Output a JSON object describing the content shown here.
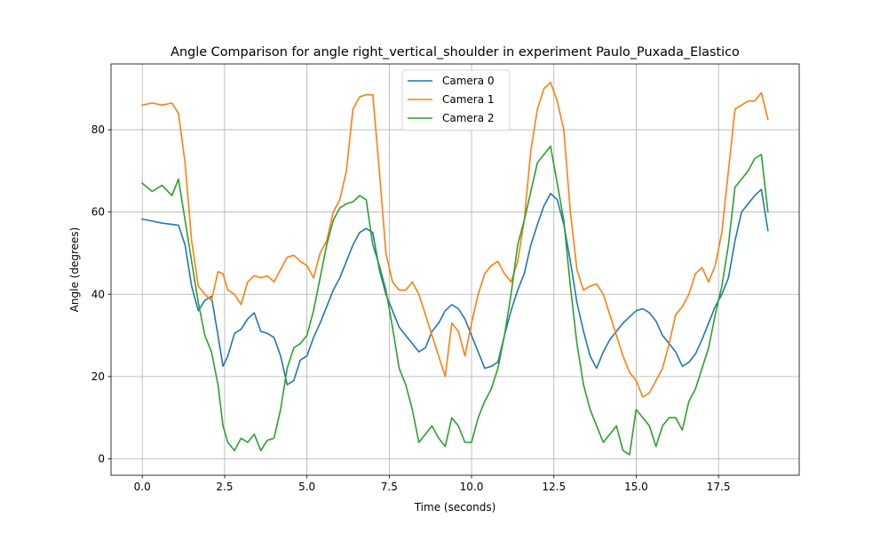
{
  "chart_data": {
    "type": "line",
    "title": "Angle Comparison for angle right_vertical_shoulder in experiment Paulo_Puxada_Elastico",
    "xlabel": "Time (seconds)",
    "ylabel": "Angle (degrees)",
    "xlim": [
      -0.95,
      19.95
    ],
    "ylim": [
      -4,
      96
    ],
    "xticks": [
      0,
      2.5,
      5,
      7.5,
      10,
      12.5,
      15,
      17.5
    ],
    "xtick_labels": [
      "0.0",
      "2.5",
      "5.0",
      "7.5",
      "10.0",
      "12.5",
      "15.0",
      "17.5"
    ],
    "yticks": [
      0,
      20,
      40,
      60,
      80
    ],
    "ytick_labels": [
      "0",
      "20",
      "40",
      "60",
      "80"
    ],
    "grid": true,
    "legend_position": "upper center",
    "series": [
      {
        "name": "Camera 0",
        "color": "#1f77b4",
        "x": [
          0,
          0.3,
          0.6,
          0.9,
          1.1,
          1.3,
          1.5,
          1.7,
          1.9,
          2.1,
          2.3,
          2.45,
          2.6,
          2.8,
          3.0,
          3.2,
          3.4,
          3.6,
          3.8,
          4.0,
          4.2,
          4.4,
          4.6,
          4.8,
          5.0,
          5.2,
          5.4,
          5.6,
          5.8,
          6.0,
          6.2,
          6.4,
          6.6,
          6.8,
          7.0,
          7.2,
          7.4,
          7.6,
          7.8,
          8.0,
          8.2,
          8.4,
          8.6,
          8.8,
          9.0,
          9.2,
          9.4,
          9.6,
          9.8,
          10.0,
          10.2,
          10.4,
          10.6,
          10.8,
          11.0,
          11.2,
          11.4,
          11.6,
          11.8,
          12.0,
          12.2,
          12.4,
          12.6,
          12.8,
          13.0,
          13.2,
          13.4,
          13.6,
          13.8,
          14.0,
          14.2,
          14.4,
          14.6,
          14.8,
          15.0,
          15.2,
          15.4,
          15.6,
          15.8,
          16.0,
          16.2,
          16.4,
          16.6,
          16.8,
          17.0,
          17.2,
          17.4,
          17.6,
          17.8,
          18.0,
          18.2,
          18.4,
          18.6,
          18.8,
          19.0
        ],
        "values": [
          58.3,
          57.8,
          57.3,
          57.0,
          56.8,
          52.0,
          42.0,
          36.0,
          38.5,
          39.5,
          30.0,
          22.5,
          25.0,
          30.5,
          31.5,
          34.0,
          35.5,
          31.0,
          30.5,
          29.5,
          25.0,
          18.0,
          19.0,
          24.0,
          25.0,
          29.5,
          33.0,
          37.0,
          41.0,
          44.0,
          48.0,
          52.0,
          55.0,
          56.0,
          55.0,
          46.0,
          40.0,
          36.0,
          32.0,
          30.0,
          28.0,
          26.0,
          27.0,
          31.0,
          33.0,
          36.0,
          37.5,
          36.5,
          34.0,
          30.0,
          26.0,
          22.0,
          22.5,
          23.5,
          30.0,
          36.0,
          41.0,
          45.0,
          52.0,
          57.0,
          61.5,
          64.5,
          63.0,
          57.0,
          48.0,
          38.0,
          31.0,
          25.0,
          22.0,
          26.0,
          29.0,
          31.0,
          33.0,
          34.5,
          36.0,
          36.5,
          35.5,
          33.5,
          30.0,
          28.0,
          26.0,
          22.5,
          23.5,
          25.5,
          29.0,
          33.0,
          37.0,
          40.0,
          44.0,
          53.0,
          60.0,
          62.0,
          64.0,
          65.5,
          55.5
        ]
      },
      {
        "name": "Camera 1",
        "color": "#ff7f0e",
        "x": [
          0,
          0.3,
          0.6,
          0.9,
          1.1,
          1.3,
          1.5,
          1.7,
          1.9,
          2.1,
          2.3,
          2.45,
          2.6,
          2.8,
          3.0,
          3.2,
          3.4,
          3.6,
          3.8,
          4.0,
          4.2,
          4.4,
          4.6,
          4.8,
          5.0,
          5.2,
          5.4,
          5.6,
          5.8,
          6.0,
          6.2,
          6.4,
          6.6,
          6.8,
          7.0,
          7.2,
          7.4,
          7.6,
          7.8,
          8.0,
          8.2,
          8.4,
          8.6,
          8.8,
          9.0,
          9.2,
          9.4,
          9.6,
          9.8,
          10.0,
          10.2,
          10.4,
          10.6,
          10.8,
          11.0,
          11.2,
          11.4,
          11.6,
          11.8,
          12.0,
          12.2,
          12.4,
          12.6,
          12.8,
          13.0,
          13.2,
          13.4,
          13.6,
          13.8,
          14.0,
          14.2,
          14.4,
          14.6,
          14.8,
          15.0,
          15.2,
          15.4,
          15.6,
          15.8,
          16.0,
          16.2,
          16.4,
          16.6,
          16.8,
          17.0,
          17.2,
          17.4,
          17.6,
          17.8,
          18.0,
          18.2,
          18.4,
          18.6,
          18.8,
          19.0
        ],
        "values": [
          86.0,
          86.5,
          86.0,
          86.5,
          84.0,
          72.0,
          53.0,
          42.0,
          40.0,
          38.5,
          45.5,
          45.0,
          41.0,
          40.0,
          37.5,
          43.0,
          44.5,
          44.0,
          44.5,
          43.0,
          46.0,
          49.0,
          49.5,
          48.0,
          47.0,
          44.0,
          50.0,
          53.0,
          60.0,
          63.0,
          70.0,
          85.0,
          88.0,
          88.5,
          88.5,
          70.0,
          50.0,
          43.0,
          41.0,
          41.0,
          43.0,
          40.0,
          35.0,
          30.0,
          25.0,
          20.0,
          33.0,
          31.0,
          25.0,
          33.0,
          40.0,
          45.0,
          47.0,
          48.0,
          45.0,
          43.0,
          48.0,
          58.0,
          75.0,
          85.0,
          90.0,
          91.5,
          87.0,
          80.0,
          60.0,
          46.0,
          41.0,
          42.0,
          42.5,
          40.0,
          35.0,
          30.0,
          25.0,
          21.0,
          19.0,
          15.0,
          16.0,
          19.0,
          22.0,
          28.0,
          35.0,
          37.0,
          40.0,
          45.0,
          46.5,
          43.0,
          47.0,
          55.0,
          70.0,
          85.0,
          86.0,
          87.0,
          87.0,
          89.0,
          82.5
        ]
      },
      {
        "name": "Camera 2",
        "color": "#2ca02c",
        "x": [
          0,
          0.3,
          0.6,
          0.9,
          1.1,
          1.3,
          1.5,
          1.7,
          1.9,
          2.1,
          2.3,
          2.45,
          2.6,
          2.8,
          3.0,
          3.2,
          3.4,
          3.6,
          3.8,
          4.0,
          4.2,
          4.4,
          4.6,
          4.8,
          5.0,
          5.2,
          5.4,
          5.6,
          5.8,
          6.0,
          6.2,
          6.4,
          6.6,
          6.8,
          7.0,
          7.2,
          7.4,
          7.6,
          7.8,
          8.0,
          8.2,
          8.4,
          8.6,
          8.8,
          9.0,
          9.2,
          9.4,
          9.6,
          9.8,
          10.0,
          10.2,
          10.4,
          10.6,
          10.8,
          11.0,
          11.2,
          11.4,
          11.6,
          11.8,
          12.0,
          12.2,
          12.4,
          12.6,
          12.8,
          13.0,
          13.2,
          13.4,
          13.6,
          13.8,
          14.0,
          14.2,
          14.4,
          14.6,
          14.8,
          15.0,
          15.2,
          15.4,
          15.6,
          15.8,
          16.0,
          16.2,
          16.4,
          16.6,
          16.8,
          17.0,
          17.2,
          17.4,
          17.6,
          17.8,
          18.0,
          18.2,
          18.4,
          18.6,
          18.8,
          19.0
        ],
        "values": [
          67.0,
          65.0,
          66.5,
          64.0,
          68.0,
          58.0,
          48.0,
          38.0,
          30.0,
          26.0,
          18.0,
          8.0,
          4.0,
          2.0,
          5.0,
          4.0,
          6.0,
          2.0,
          4.5,
          5.0,
          12.0,
          22.0,
          27.0,
          28.0,
          30.0,
          36.0,
          44.0,
          52.0,
          58.0,
          61.0,
          62.0,
          62.5,
          64.0,
          63.0,
          52.0,
          47.0,
          41.0,
          32.0,
          22.0,
          18.0,
          12.0,
          4.0,
          6.0,
          8.0,
          5.0,
          3.0,
          10.0,
          8.0,
          4.0,
          4.0,
          10.0,
          14.0,
          17.0,
          22.0,
          30.0,
          40.0,
          52.0,
          58.0,
          65.0,
          72.0,
          74.0,
          76.0,
          67.0,
          58.0,
          42.0,
          28.0,
          18.0,
          12.0,
          8.0,
          4.0,
          6.0,
          8.0,
          2.0,
          1.0,
          12.0,
          10.0,
          8.0,
          3.0,
          8.0,
          10.0,
          10.0,
          7.0,
          14.0,
          17.0,
          22.0,
          27.0,
          35.0,
          42.0,
          52.0,
          66.0,
          68.0,
          70.0,
          73.0,
          74.0,
          60.0
        ]
      }
    ]
  }
}
